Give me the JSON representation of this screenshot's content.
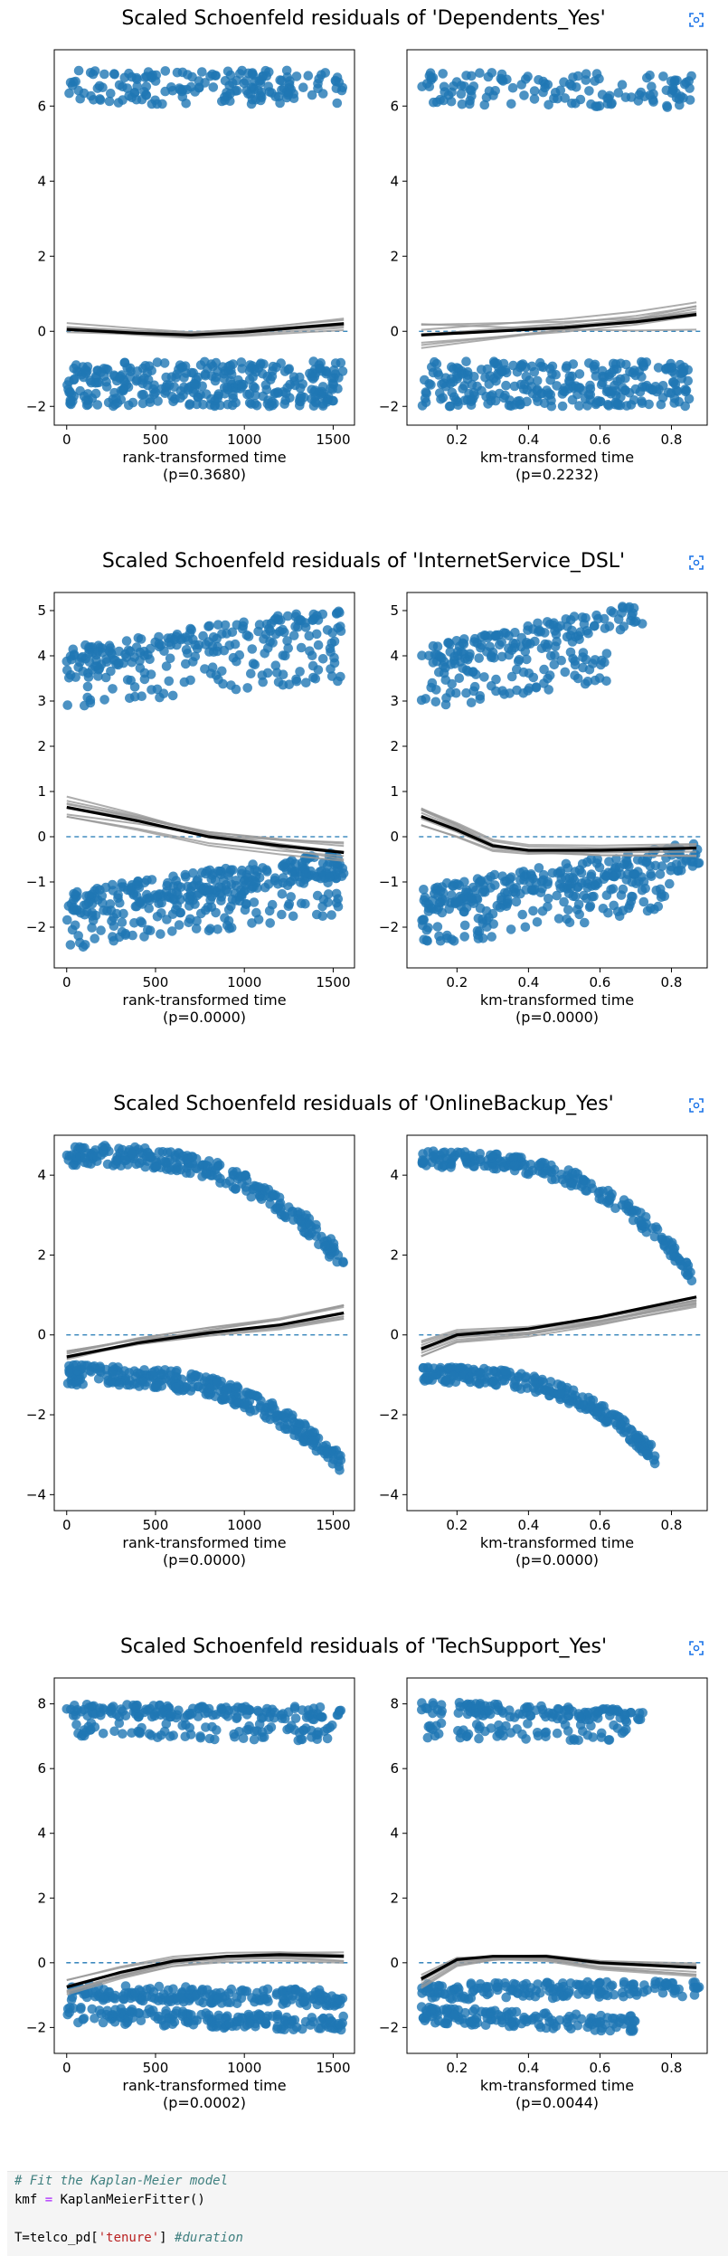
{
  "figures": [
    {
      "title": "Scaled Schoenfeld residuals of 'Dependents_Yes'",
      "panels": [
        {
          "xlabel": "rank-transformed time",
          "pvalue": "(p=0.3680)",
          "xlim": [
            -70,
            1620
          ],
          "ylim": [
            -2.5,
            7.5
          ],
          "xticks": [
            0,
            500,
            1000,
            1500
          ],
          "yticks": [
            -2,
            0,
            2,
            4,
            6
          ],
          "clusters": [
            {
              "xr": [
                0,
                1560
              ],
              "y0": 6.5,
              "y1": 6.5,
              "spread": 0.45,
              "n": 170
            },
            {
              "xr": [
                0,
                1560
              ],
              "y0": -1.4,
              "y1": -1.4,
              "spread": 0.6,
              "n": 320
            }
          ],
          "trend": [
            [
              0,
              0.05
            ],
            [
              400,
              -0.05
            ],
            [
              700,
              -0.1
            ],
            [
              1000,
              -0.02
            ],
            [
              1300,
              0.1
            ],
            [
              1560,
              0.2
            ]
          ],
          "gray_spread": 0.2
        },
        {
          "xlabel": "km-transformed time",
          "pvalue": "(p=0.2232)",
          "xlim": [
            0.06,
            0.9
          ],
          "ylim": [
            -2.5,
            7.5
          ],
          "xticks": [
            0.2,
            0.4,
            0.6,
            0.8
          ],
          "yticks": [
            -2,
            0,
            2,
            4,
            6
          ],
          "clusters": [
            {
              "xr": [
                0.1,
                0.88
              ],
              "y0": 6.5,
              "y1": 6.4,
              "spread": 0.45,
              "n": 130
            },
            {
              "xr": [
                0.1,
                0.85
              ],
              "y0": -1.4,
              "y1": -1.4,
              "spread": 0.6,
              "n": 280
            }
          ],
          "trend": [
            [
              0.1,
              -0.1
            ],
            [
              0.3,
              0
            ],
            [
              0.5,
              0.1
            ],
            [
              0.7,
              0.25
            ],
            [
              0.87,
              0.45
            ]
          ],
          "gray_spread": 0.45
        }
      ]
    },
    {
      "title": "Scaled Schoenfeld residuals of 'InternetService_DSL'",
      "panels": [
        {
          "xlabel": "rank-transformed time",
          "pvalue": "(p=0.0000)",
          "xlim": [
            -70,
            1620
          ],
          "ylim": [
            -2.9,
            5.4
          ],
          "xticks": [
            0,
            500,
            1000,
            1500
          ],
          "yticks": [
            -2,
            -1,
            0,
            1,
            2,
            3,
            4,
            5
          ],
          "clusters": [
            {
              "xr": [
                0,
                1560
              ],
              "y0": 3.9,
              "y1": 4.8,
              "spread": 0.3,
              "n": 160
            },
            {
              "xr": [
                0,
                1560
              ],
              "y0": 3.3,
              "y1": 3.9,
              "spread": 0.45,
              "n": 100
            },
            {
              "xr": [
                0,
                1560
              ],
              "y0": -1.5,
              "y1": -0.6,
              "spread": 0.3,
              "n": 220
            },
            {
              "xr": [
                0,
                1560
              ],
              "y0": -2.0,
              "y1": -1.2,
              "spread": 0.5,
              "n": 150
            }
          ],
          "trend": [
            [
              0,
              0.65
            ],
            [
              400,
              0.35
            ],
            [
              800,
              0.0
            ],
            [
              1200,
              -0.2
            ],
            [
              1560,
              -0.35
            ]
          ],
          "gray_spread": 0.25
        },
        {
          "xlabel": "km-transformed time",
          "pvalue": "(p=0.0000)",
          "xlim": [
            0.06,
            0.9
          ],
          "ylim": [
            -2.9,
            5.4
          ],
          "xticks": [
            0.2,
            0.4,
            0.6,
            0.8
          ],
          "yticks": [
            -2,
            -1,
            0,
            1,
            2,
            3,
            4,
            5
          ],
          "clusters": [
            {
              "xr": [
                0.1,
                0.72
              ],
              "y0": 3.9,
              "y1": 4.9,
              "spread": 0.3,
              "n": 140
            },
            {
              "xr": [
                0.1,
                0.62
              ],
              "y0": 3.2,
              "y1": 3.8,
              "spread": 0.4,
              "n": 80
            },
            {
              "xr": [
                0.1,
                0.88
              ],
              "y0": -1.4,
              "y1": -0.4,
              "spread": 0.3,
              "n": 200
            },
            {
              "xr": [
                0.1,
                0.8
              ],
              "y0": -2.0,
              "y1": -1.1,
              "spread": 0.5,
              "n": 130
            }
          ],
          "trend": [
            [
              0.1,
              0.45
            ],
            [
              0.2,
              0.15
            ],
            [
              0.3,
              -0.2
            ],
            [
              0.4,
              -0.3
            ],
            [
              0.6,
              -0.3
            ],
            [
              0.87,
              -0.25
            ]
          ],
          "gray_spread": 0.2
        }
      ]
    },
    {
      "title": "Scaled Schoenfeld residuals of 'OnlineBackup_Yes'",
      "panels": [
        {
          "xlabel": "rank-transformed time",
          "pvalue": "(p=0.0000)",
          "xlim": [
            -70,
            1620
          ],
          "ylim": [
            -4.4,
            5.0
          ],
          "xticks": [
            0,
            500,
            1000,
            1500
          ],
          "yticks": [
            -4,
            -2,
            0,
            2,
            4
          ],
          "clusters": [
            {
              "xr": [
                0,
                1560
              ],
              "y0": 4.5,
              "y1": 1.8,
              "spread": 0.25,
              "n": 260,
              "curve": true
            },
            {
              "xr": [
                0,
                1560
              ],
              "y0": -1.0,
              "y1": -3.3,
              "spread": 0.25,
              "n": 300,
              "curve": true
            }
          ],
          "trend": [
            [
              0,
              -0.55
            ],
            [
              400,
              -0.2
            ],
            [
              800,
              0.05
            ],
            [
              1200,
              0.25
            ],
            [
              1560,
              0.55
            ]
          ],
          "gray_spread": 0.2
        },
        {
          "xlabel": "km-transformed time",
          "pvalue": "(p=0.0000)",
          "xlim": [
            0.06,
            0.9
          ],
          "ylim": [
            -4.4,
            5.0
          ],
          "xticks": [
            0.2,
            0.4,
            0.6,
            0.8
          ],
          "yticks": [
            -4,
            -2,
            0,
            2,
            4
          ],
          "clusters": [
            {
              "xr": [
                0.1,
                0.86
              ],
              "y0": 4.4,
              "y1": 1.5,
              "spread": 0.2,
              "n": 220,
              "curve": true
            },
            {
              "xr": [
                0.1,
                0.76
              ],
              "y0": -1.0,
              "y1": -3.1,
              "spread": 0.2,
              "n": 240,
              "curve": true
            }
          ],
          "trend": [
            [
              0.1,
              -0.35
            ],
            [
              0.2,
              0.0
            ],
            [
              0.4,
              0.15
            ],
            [
              0.6,
              0.45
            ],
            [
              0.87,
              0.95
            ]
          ],
          "gray_spread": 0.25
        }
      ]
    },
    {
      "title": "Scaled Schoenfeld residuals of 'TechSupport_Yes'",
      "panels": [
        {
          "xlabel": "rank-transformed time",
          "pvalue": "(p=0.0002)",
          "xlim": [
            -70,
            1620
          ],
          "ylim": [
            -2.8,
            8.8
          ],
          "xticks": [
            0,
            500,
            1000,
            1500
          ],
          "yticks": [
            -2,
            0,
            2,
            4,
            6,
            8
          ],
          "clusters": [
            {
              "xr": [
                0,
                1560
              ],
              "y0": 7.8,
              "y1": 7.7,
              "spread": 0.2,
              "n": 150
            },
            {
              "xr": [
                50,
                1560
              ],
              "y0": 7.2,
              "y1": 7.1,
              "spread": 0.25,
              "n": 80
            },
            {
              "xr": [
                0,
                1560
              ],
              "y0": -0.9,
              "y1": -1.1,
              "spread": 0.25,
              "n": 200
            },
            {
              "xr": [
                0,
                1560
              ],
              "y0": -1.6,
              "y1": -1.9,
              "spread": 0.25,
              "n": 180
            }
          ],
          "trend": [
            [
              0,
              -0.75
            ],
            [
              300,
              -0.3
            ],
            [
              600,
              0.05
            ],
            [
              900,
              0.2
            ],
            [
              1200,
              0.25
            ],
            [
              1560,
              0.2
            ]
          ],
          "gray_spread": 0.25
        },
        {
          "xlabel": "km-transformed time",
          "pvalue": "(p=0.0044)",
          "xlim": [
            0.06,
            0.9
          ],
          "ylim": [
            -2.8,
            8.8
          ],
          "xticks": [
            0.2,
            0.4,
            0.6,
            0.8
          ],
          "yticks": [
            -2,
            0,
            2,
            4,
            6,
            8
          ],
          "clusters": [
            {
              "xr": [
                0.1,
                0.72
              ],
              "y0": 7.9,
              "y1": 7.6,
              "spread": 0.2,
              "n": 120
            },
            {
              "xr": [
                0.1,
                0.68
              ],
              "y0": 7.2,
              "y1": 7.1,
              "spread": 0.25,
              "n": 60
            },
            {
              "xr": [
                0.1,
                0.88
              ],
              "y0": -0.9,
              "y1": -0.8,
              "spread": 0.25,
              "n": 170
            },
            {
              "xr": [
                0.1,
                0.7
              ],
              "y0": -1.6,
              "y1": -1.9,
              "spread": 0.25,
              "n": 150
            }
          ],
          "trend": [
            [
              0.1,
              -0.5
            ],
            [
              0.2,
              0.1
            ],
            [
              0.3,
              0.2
            ],
            [
              0.45,
              0.2
            ],
            [
              0.6,
              0.0
            ],
            [
              0.87,
              -0.15
            ]
          ],
          "gray_spread": 0.3
        }
      ]
    }
  ],
  "code": {
    "line1": "# Fit the Kaplan-Meier model",
    "line2_var": "kmf",
    "line2_op": "=",
    "line2_call": "KaplanMeierFitter()",
    "line3_prefix": "T=telco_pd[",
    "line3_str": "'tenure'",
    "line3_suffix": "]",
    "line3_comment": "#duration"
  },
  "colors": {
    "points": "#1f77b4",
    "trend": "#000000",
    "bootstrap": "#999999",
    "zero_line": "#1f77b4"
  }
}
